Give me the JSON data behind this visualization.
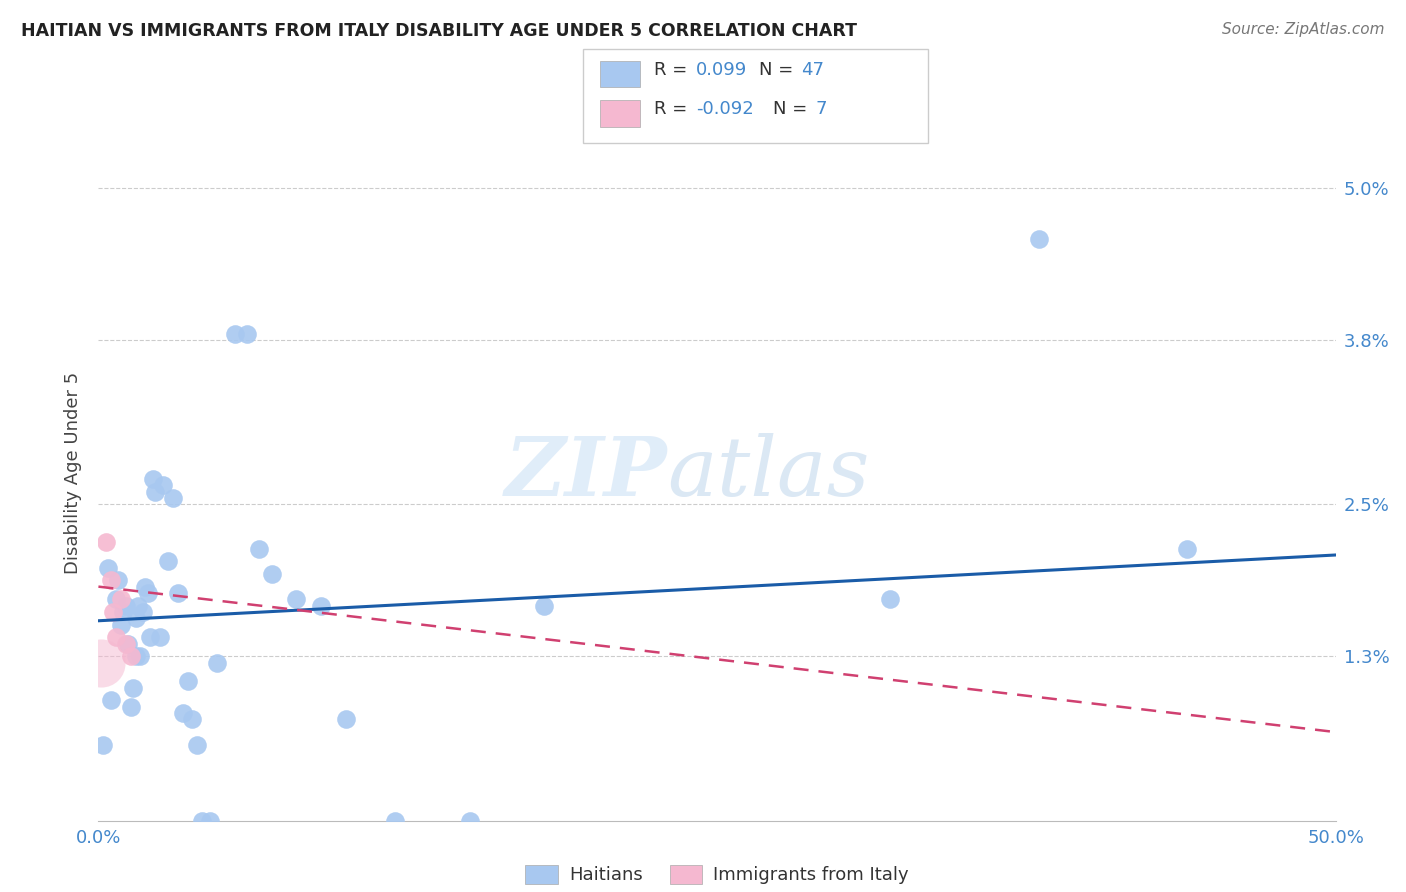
{
  "title": "HAITIAN VS IMMIGRANTS FROM ITALY DISABILITY AGE UNDER 5 CORRELATION CHART",
  "source": "Source: ZipAtlas.com",
  "ylabel": "Disability Age Under 5",
  "xlim": [
    0.0,
    0.5
  ],
  "ylim": [
    0.0,
    0.055
  ],
  "xticks": [
    0.0,
    0.1,
    0.2,
    0.3,
    0.4,
    0.5
  ],
  "xticklabels": [
    "0.0%",
    "",
    "",
    "",
    "",
    "50.0%"
  ],
  "yticks": [
    0.0,
    0.013,
    0.025,
    0.038,
    0.05
  ],
  "yticklabels": [
    "",
    "1.3%",
    "2.5%",
    "3.8%",
    "5.0%"
  ],
  "haitian_color": "#a8c8f0",
  "italy_color": "#f5b8d0",
  "line_haitian_color": "#1a5ca8",
  "line_italy_color": "#d04070",
  "watermark_zip": "ZIP",
  "watermark_atlas": "atlas",
  "haitian_x": [
    0.002,
    0.004,
    0.005,
    0.007,
    0.008,
    0.009,
    0.01,
    0.011,
    0.012,
    0.013,
    0.014,
    0.015,
    0.015,
    0.016,
    0.017,
    0.018,
    0.019,
    0.02,
    0.021,
    0.022,
    0.023,
    0.025,
    0.026,
    0.028,
    0.03,
    0.032,
    0.034,
    0.036,
    0.038,
    0.04,
    0.042,
    0.045,
    0.048,
    0.055,
    0.06,
    0.065,
    0.07,
    0.08,
    0.09,
    0.1,
    0.12,
    0.15,
    0.18,
    0.32,
    0.38,
    0.44
  ],
  "haitian_y": [
    0.006,
    0.02,
    0.0095,
    0.0175,
    0.019,
    0.0155,
    0.0165,
    0.017,
    0.014,
    0.009,
    0.0105,
    0.016,
    0.013,
    0.017,
    0.013,
    0.0165,
    0.0185,
    0.018,
    0.0145,
    0.027,
    0.026,
    0.0145,
    0.0265,
    0.0205,
    0.0255,
    0.018,
    0.0085,
    0.011,
    0.008,
    0.006,
    0.0,
    0.0,
    0.0125,
    0.0385,
    0.0385,
    0.0215,
    0.0195,
    0.0175,
    0.017,
    0.008,
    0.0,
    0.0,
    0.017,
    0.0175,
    0.046,
    0.0215
  ],
  "italy_x": [
    0.003,
    0.005,
    0.006,
    0.007,
    0.009,
    0.011,
    0.013
  ],
  "italy_y": [
    0.022,
    0.019,
    0.0165,
    0.0145,
    0.0175,
    0.014,
    0.013
  ],
  "italy_large_x": [
    0.001
  ],
  "italy_large_y": [
    0.0125
  ],
  "haitian_line_x0": 0.0,
  "haitian_line_y0": 0.0158,
  "haitian_line_x1": 0.5,
  "haitian_line_y1": 0.021,
  "italy_line_x0": 0.0,
  "italy_line_y0": 0.0185,
  "italy_line_x1": 0.5,
  "italy_line_y1": 0.007
}
